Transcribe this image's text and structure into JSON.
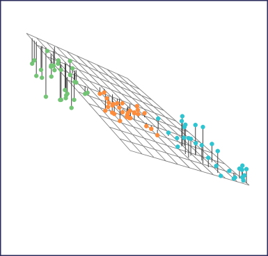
{
  "chart_data": {
    "type": "scatter",
    "title": "",
    "xlabel": "",
    "ylabel": "",
    "zlabel": "",
    "view": "3d",
    "grid": true,
    "legend": false,
    "plane": {
      "x_range": [
        0,
        10
      ],
      "y_range": [
        0,
        10
      ],
      "z_at_corners": [
        16.82,
        31.59,
        0.42,
        15.18
      ]
    },
    "series": [
      {
        "color": "#74c476",
        "points": [
          {
            "x": 1.79,
            "y": 8.08,
            "z": 17.22
          },
          {
            "x": 2.31,
            "y": 8.98,
            "z": 15.3
          },
          {
            "x": 1.67,
            "y": 9.29,
            "z": 24.81
          },
          {
            "x": 3.91,
            "y": 8.33,
            "z": 20.25
          },
          {
            "x": 1.2,
            "y": 9.19,
            "z": 28.41
          },
          {
            "x": 1.41,
            "y": 9.04,
            "z": 23.85
          },
          {
            "x": 0.82,
            "y": 8.19,
            "z": 22.94
          },
          {
            "x": 0.78,
            "y": 8.89,
            "z": 13.21
          },
          {
            "x": 0.36,
            "y": 9.81,
            "z": 22.8
          },
          {
            "x": 3.15,
            "y": 8.84,
            "z": 14.43
          },
          {
            "x": 1.59,
            "y": 8.55,
            "z": 25.13
          },
          {
            "x": 0.11,
            "y": 7.34,
            "z": 20.09
          },
          {
            "x": 3.73,
            "y": 9.9,
            "z": 19.72
          },
          {
            "x": 1.71,
            "y": 8.47,
            "z": 14.02
          },
          {
            "x": 3.09,
            "y": 8.92,
            "z": 29.03
          },
          {
            "x": 2.23,
            "y": 7.47,
            "z": 20.36
          },
          {
            "x": 1.02,
            "y": 9.61,
            "z": 22.18
          },
          {
            "x": 2.69,
            "y": 8.51,
            "z": 23.77
          },
          {
            "x": 2.33,
            "y": 7.7,
            "z": 20.77
          },
          {
            "x": 2.61,
            "y": 9.3,
            "z": 25.33
          },
          {
            "x": 0.79,
            "y": 9.29,
            "z": 19.22
          },
          {
            "x": 2.24,
            "y": 9.84,
            "z": 22.56
          },
          {
            "x": 0.56,
            "y": 9.6,
            "z": 19.36
          },
          {
            "x": 1.73,
            "y": 8.66,
            "z": 26.44
          },
          {
            "x": 4.1,
            "y": 8.29,
            "z": 20.98
          },
          {
            "x": 3.6,
            "y": 9.67,
            "z": 19.91
          },
          {
            "x": 0.54,
            "y": 9.78,
            "z": 24.19
          },
          {
            "x": 1.92,
            "y": 8.14,
            "z": 14.94
          },
          {
            "x": 2.76,
            "y": 8.2,
            "z": 16.08
          },
          {
            "x": 2.89,
            "y": 8.49,
            "z": 26.24
          }
        ]
      },
      {
        "color": "#fd8d3c",
        "points": [
          {
            "x": 4.13,
            "y": 6.53,
            "z": 18.89
          },
          {
            "x": 4.42,
            "y": 5.41,
            "z": 17.68
          },
          {
            "x": 4.09,
            "y": 6.32,
            "z": 17.45
          },
          {
            "x": 5.05,
            "y": 5.31,
            "z": 14.22
          },
          {
            "x": 5.19,
            "y": 4.18,
            "z": 15.73
          },
          {
            "x": 3.99,
            "y": 6.53,
            "z": 14.79
          },
          {
            "x": 3.29,
            "y": 6.32,
            "z": 18.7
          },
          {
            "x": 4.03,
            "y": 5.47,
            "z": 16.97
          },
          {
            "x": 5.97,
            "y": 5.89,
            "z": 17.64
          },
          {
            "x": 5.33,
            "y": 5.7,
            "z": 14.85
          },
          {
            "x": 6.02,
            "y": 4.42,
            "z": 12.44
          },
          {
            "x": 6.31,
            "y": 4.17,
            "z": 10.92
          },
          {
            "x": 4.7,
            "y": 5.24,
            "z": 14.56
          },
          {
            "x": 4.48,
            "y": 4.95,
            "z": 14.71
          },
          {
            "x": 5.1,
            "y": 5.7,
            "z": 14.76
          },
          {
            "x": 5.55,
            "y": 5.11,
            "z": 16.37
          },
          {
            "x": 4.52,
            "y": 6.34,
            "z": 17.83
          },
          {
            "x": 4.12,
            "y": 6.03,
            "z": 14.32
          },
          {
            "x": 3.29,
            "y": 5.92,
            "z": 19.02
          },
          {
            "x": 3.62,
            "y": 5.49,
            "z": 15.51
          },
          {
            "x": 3.89,
            "y": 5.13,
            "z": 15.29
          },
          {
            "x": 5.19,
            "y": 6.17,
            "z": 16.52
          },
          {
            "x": 5.87,
            "y": 4.71,
            "z": 13.08
          },
          {
            "x": 4.61,
            "y": 6.34,
            "z": 14.92
          },
          {
            "x": 4.58,
            "y": 4.23,
            "z": 16.86
          },
          {
            "x": 4.49,
            "y": 4.06,
            "z": 15.46
          },
          {
            "x": 4.24,
            "y": 6.54,
            "z": 16.45
          },
          {
            "x": 4.66,
            "y": 5.87,
            "z": 12.71
          },
          {
            "x": 5.36,
            "y": 5.28,
            "z": 16.56
          },
          {
            "x": 4.06,
            "y": 4.33,
            "z": 14.48
          }
        ]
      },
      {
        "color": "#2fc4d0",
        "points": [
          {
            "x": 9.19,
            "y": 2.64,
            "z": 8.6
          },
          {
            "x": 7.33,
            "y": 3.01,
            "z": 18.39
          },
          {
            "x": 8.57,
            "y": 1.34,
            "z": 4.48
          },
          {
            "x": 6.48,
            "y": 1.99,
            "z": 9.84
          },
          {
            "x": 9.5,
            "y": 0.06,
            "z": 5.74
          },
          {
            "x": 8.11,
            "y": 2.66,
            "z": 16.95
          },
          {
            "x": 7.42,
            "y": 3.5,
            "z": 9.15
          },
          {
            "x": 8.36,
            "y": 3.31,
            "z": 13.27
          },
          {
            "x": 9.84,
            "y": 0.25,
            "z": 3.33
          },
          {
            "x": 7.49,
            "y": 3.22,
            "z": 17.23
          },
          {
            "x": 7.92,
            "y": 2.44,
            "z": 10.82
          },
          {
            "x": 6.65,
            "y": 3.54,
            "z": 12.15
          },
          {
            "x": 6.2,
            "y": 3.99,
            "z": 15.88
          },
          {
            "x": 8.55,
            "y": 2.56,
            "z": 11.36
          },
          {
            "x": 9.57,
            "y": 2.22,
            "z": 11.22
          },
          {
            "x": 8.35,
            "y": 1.48,
            "z": 11.04
          },
          {
            "x": 8.89,
            "y": 0.16,
            "z": 0.68
          },
          {
            "x": 8.72,
            "y": 3.86,
            "z": 14.33
          },
          {
            "x": 9.86,
            "y": 0.35,
            "z": 1.83
          },
          {
            "x": 7.27,
            "y": 2.77,
            "z": 14.82
          },
          {
            "x": 9.47,
            "y": 0.06,
            "z": 4.38
          },
          {
            "x": 6.2,
            "y": 2.31,
            "z": 9.31
          },
          {
            "x": 9.46,
            "y": 0.27,
            "z": 4.78
          },
          {
            "x": 9.84,
            "y": 0.07,
            "z": 5.23
          },
          {
            "x": 9.91,
            "y": 0.49,
            "z": 2.93
          },
          {
            "x": 8.92,
            "y": 2.83,
            "z": 17.83
          },
          {
            "x": 9.1,
            "y": 0.27,
            "z": 1.39
          },
          {
            "x": 8.37,
            "y": 3.79,
            "z": 17.87
          },
          {
            "x": 8.56,
            "y": 0.2,
            "z": 2.51
          },
          {
            "x": 9.63,
            "y": 2.02,
            "z": 3.48
          }
        ]
      }
    ]
  }
}
